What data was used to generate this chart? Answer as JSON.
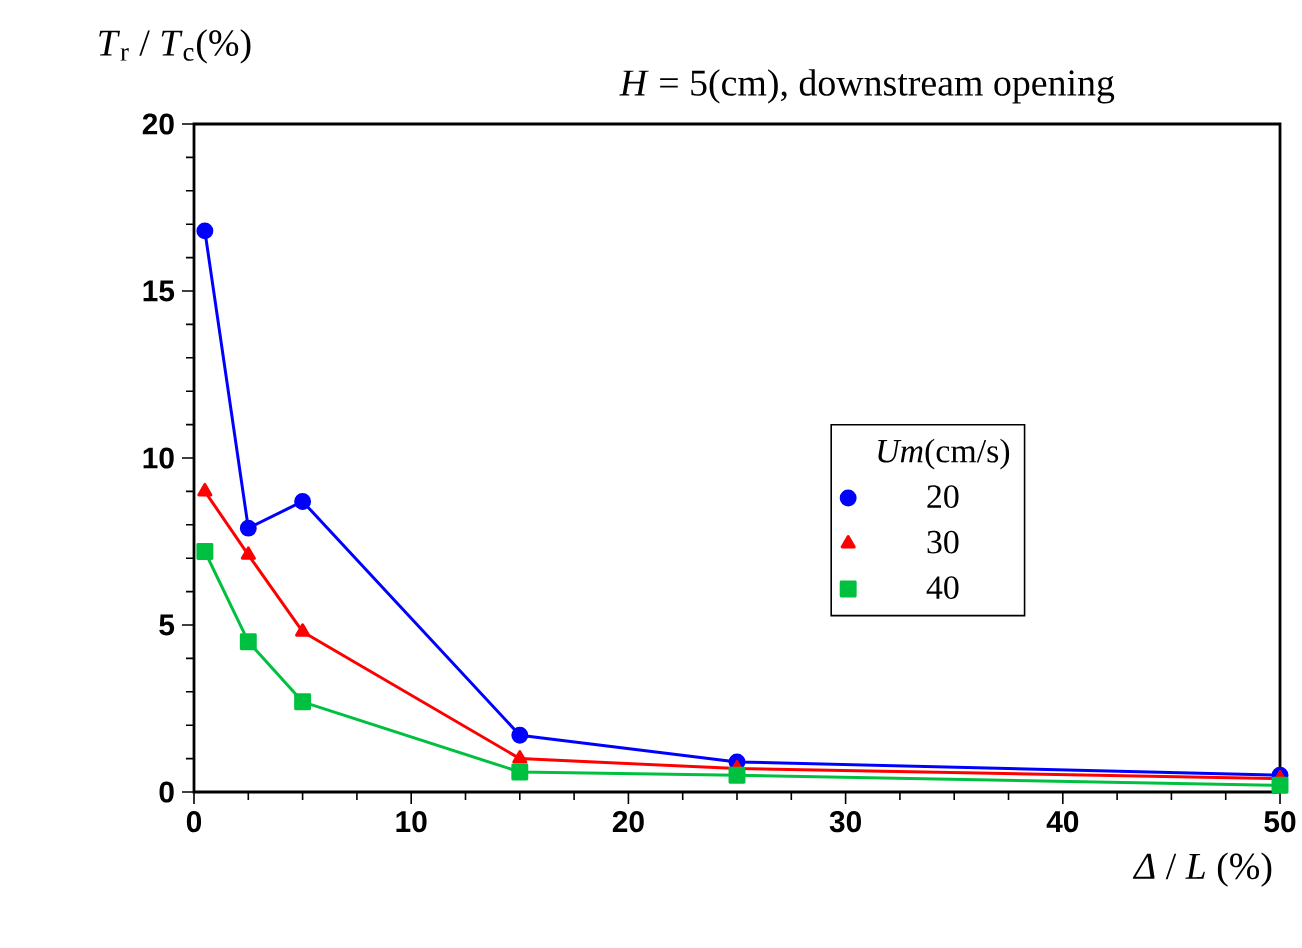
{
  "chart_data": {
    "type": "line",
    "title": "*H* = 5(cm),  downstream opening",
    "xlabel": "*Δ* / *L* (%)",
    "ylabel": "*T*$_{r}$ / *T*$_{c}$(%)",
    "legend_title": "*Um*(cm/s)",
    "x": [
      0.5,
      2.5,
      5,
      15,
      25,
      50
    ],
    "series": [
      {
        "name": "20",
        "color": "#0000ff",
        "marker": "circle",
        "values": [
          16.8,
          7.9,
          8.7,
          1.7,
          0.9,
          0.5
        ]
      },
      {
        "name": "30",
        "color": "#ff0000",
        "marker": "triangle",
        "values": [
          9.0,
          7.1,
          4.8,
          1.0,
          0.7,
          0.4
        ]
      },
      {
        "name": "40",
        "color": "#00c040",
        "marker": "square",
        "values": [
          7.2,
          4.5,
          2.7,
          0.6,
          0.5,
          0.2
        ]
      }
    ],
    "xlim": [
      0,
      50
    ],
    "ylim": [
      0,
      20
    ],
    "xticks": [
      0,
      10,
      20,
      30,
      40,
      50
    ],
    "yticks": [
      0,
      5,
      10,
      15,
      20
    ],
    "legend": "right",
    "grid": false,
    "line_style": "solid"
  }
}
